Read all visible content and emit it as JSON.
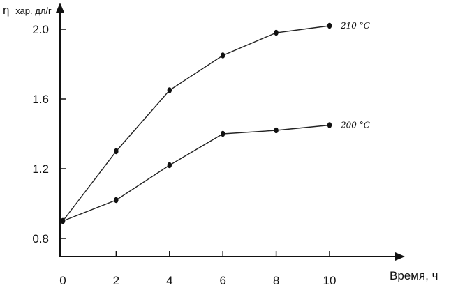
{
  "chart_data": {
    "type": "line",
    "title": "",
    "ylabel_main": "η",
    "ylabel_sub": "хар. дл/г",
    "xlabel": "Время, ч",
    "xlim": [
      0,
      10
    ],
    "ylim": [
      0.8,
      2.0
    ],
    "x_ticks": [
      0,
      2,
      4,
      6,
      8,
      10
    ],
    "x_tick_labels": [
      "0",
      "2",
      "4",
      "6",
      "8",
      "10"
    ],
    "y_ticks": [
      0.8,
      1.2,
      1.6,
      2.0
    ],
    "y_tick_labels": [
      "0.8",
      "1.2",
      "1.6",
      "2.0"
    ],
    "x": [
      0,
      2,
      4,
      6,
      8,
      10
    ],
    "series": [
      {
        "name": "210 °C",
        "values": [
          0.9,
          1.3,
          1.65,
          1.85,
          1.98,
          2.02
        ]
      },
      {
        "name": "200 °C",
        "values": [
          0.9,
          1.02,
          1.22,
          1.4,
          1.42,
          1.45
        ]
      }
    ],
    "grid": false,
    "legend": "inline labels at line ends"
  }
}
